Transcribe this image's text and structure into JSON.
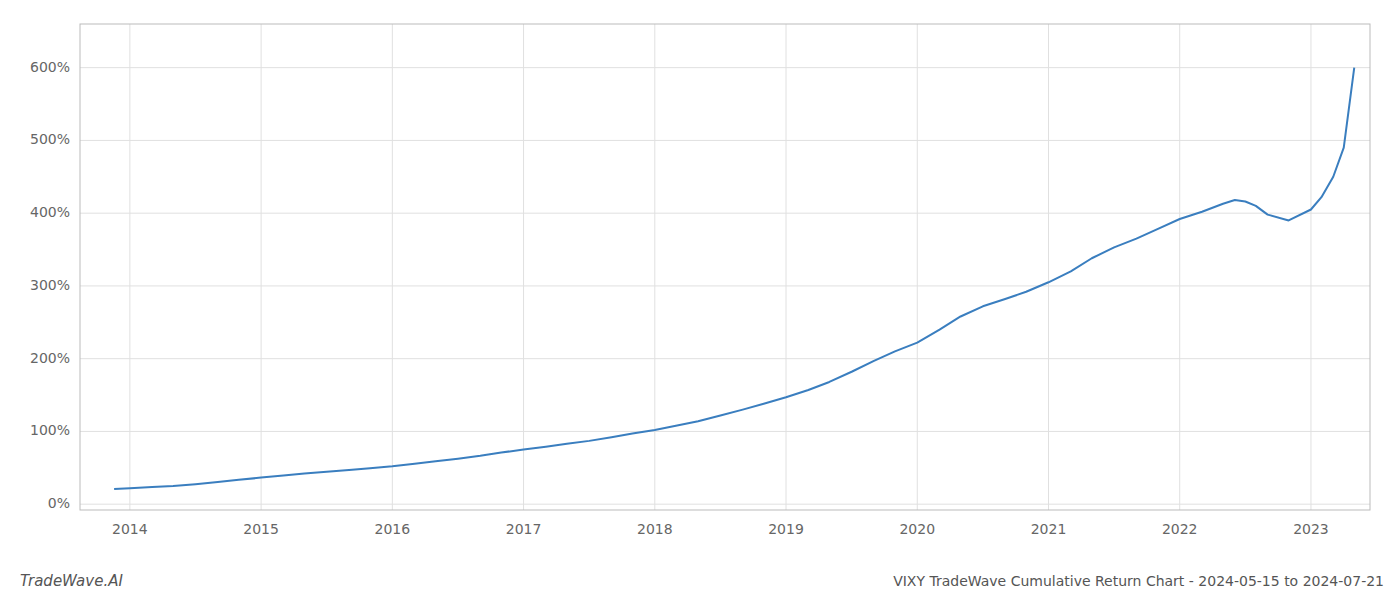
{
  "chart_data": {
    "type": "line",
    "title": "VIXY TradeWave Cumulative Return Chart - 2024-05-15 to 2024-07-21",
    "annotations": [
      "TradeWave.AI"
    ],
    "color": "#3a7ebf",
    "grid": true,
    "xlim": [
      2013.62,
      2023.45
    ],
    "xticks": [
      2014,
      2015,
      2016,
      2017,
      2018,
      2019,
      2020,
      2021,
      2022,
      2023
    ],
    "ylim": [
      -0.08,
      6.6
    ],
    "yticks": [
      {
        "value": 0,
        "label": "0%"
      },
      {
        "value": 1,
        "label": "100%"
      },
      {
        "value": 2,
        "label": "200%"
      },
      {
        "value": 3,
        "label": "300%"
      },
      {
        "value": 4,
        "label": "400%"
      },
      {
        "value": 5,
        "label": "500%"
      },
      {
        "value": 6,
        "label": "600%"
      }
    ],
    "x": [
      2013.88,
      2014.0,
      2014.17,
      2014.33,
      2014.5,
      2014.67,
      2014.83,
      2015.0,
      2015.17,
      2015.33,
      2015.5,
      2015.67,
      2015.83,
      2016.0,
      2016.17,
      2016.33,
      2016.5,
      2016.67,
      2016.83,
      2017.0,
      2017.17,
      2017.33,
      2017.5,
      2017.67,
      2017.83,
      2018.0,
      2018.17,
      2018.33,
      2018.5,
      2018.67,
      2018.83,
      2019.0,
      2019.17,
      2019.33,
      2019.5,
      2019.67,
      2019.83,
      2020.0,
      2020.17,
      2020.33,
      2020.5,
      2020.67,
      2020.83,
      2021.0,
      2021.17,
      2021.33,
      2021.5,
      2021.67,
      2021.83,
      2022.0,
      2022.17,
      2022.33,
      2022.42,
      2022.5,
      2022.58,
      2022.67,
      2022.83,
      2023.0,
      2023.08,
      2023.17,
      2023.25,
      2023.33
    ],
    "values": [
      0.21,
      0.22,
      0.235,
      0.25,
      0.275,
      0.305,
      0.335,
      0.365,
      0.395,
      0.42,
      0.445,
      0.47,
      0.495,
      0.52,
      0.555,
      0.59,
      0.625,
      0.665,
      0.71,
      0.75,
      0.79,
      0.83,
      0.87,
      0.92,
      0.97,
      1.02,
      1.08,
      1.14,
      1.22,
      1.3,
      1.38,
      1.47,
      1.57,
      1.68,
      1.82,
      1.97,
      2.1,
      2.22,
      2.4,
      2.58,
      2.72,
      2.82,
      2.92,
      3.05,
      3.2,
      3.38,
      3.53,
      3.65,
      3.78,
      3.92,
      4.02,
      4.13,
      4.18,
      4.16,
      4.1,
      3.98,
      3.9,
      4.05,
      4.22,
      4.5,
      4.9,
      6.0
    ]
  }
}
